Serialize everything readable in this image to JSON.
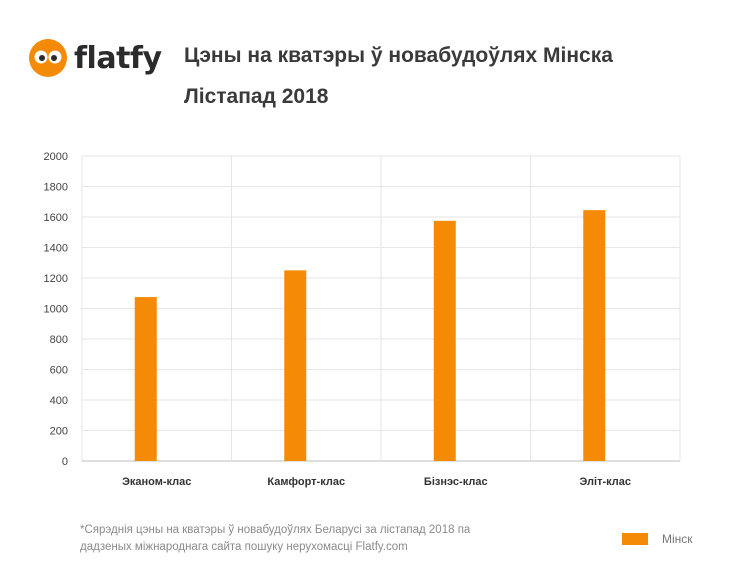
{
  "brand": {
    "name": "flatfy",
    "accent": "#f58a07"
  },
  "header": {
    "title": "Цэны на кватэры ў новабудоўлях Мінска",
    "subtitle": "Лістапад 2018"
  },
  "chart_data": {
    "type": "bar",
    "categories": [
      "Эканом-клас",
      "Камфорт-клас",
      "Бізнэс-клас",
      "Эліт-клас"
    ],
    "series": [
      {
        "name": "Мінск",
        "values": [
          1075,
          1250,
          1575,
          1645
        ],
        "color": "#f58a07"
      }
    ],
    "ylim": [
      0,
      2000
    ],
    "yticks": [
      0,
      200,
      400,
      600,
      800,
      1000,
      1200,
      1400,
      1600,
      1800,
      2000
    ],
    "grid": true,
    "legend_position": "bottom-right"
  },
  "footnote": {
    "line1": "*Сярэднія цэны на кватэры ў новабудоўлях Беларусі за лістапад 2018 па",
    "line2": "дадзеных міжнароднага сайта пошуку нерухомасці Flatfy.com"
  }
}
